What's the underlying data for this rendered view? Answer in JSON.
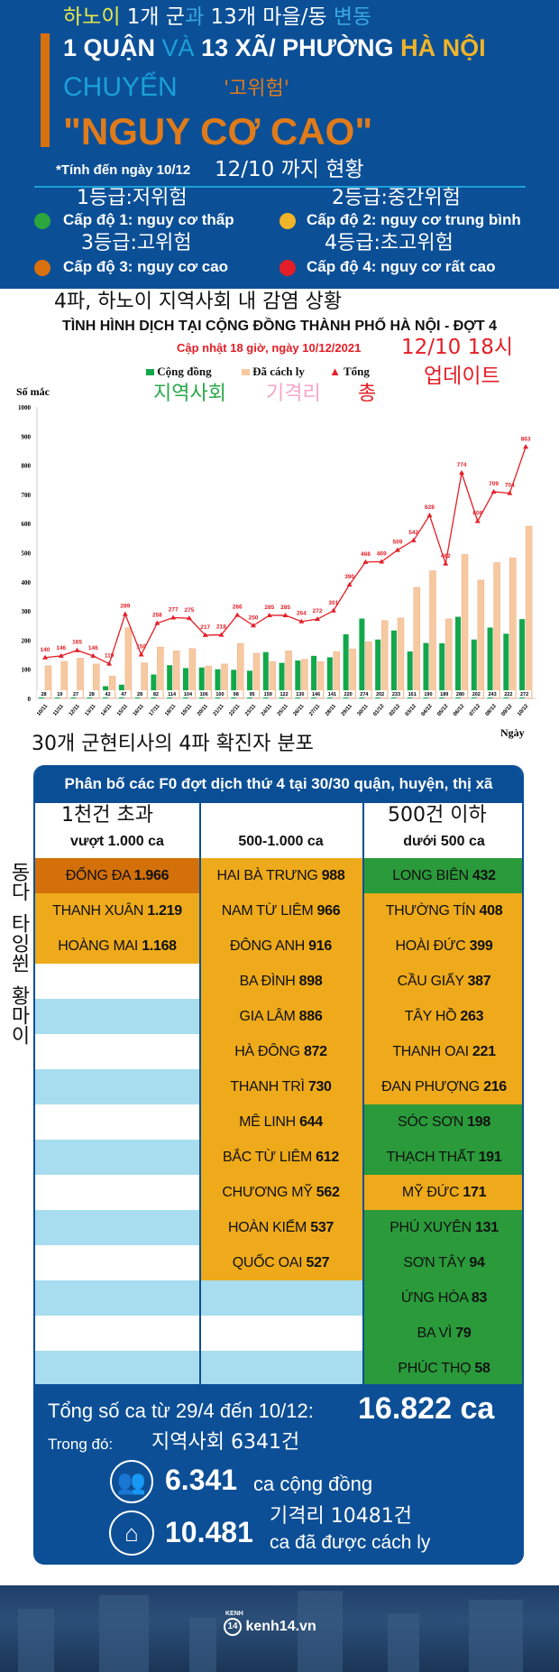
{
  "header": {
    "ko_line1": [
      "하노이",
      "1개 군",
      "과",
      "13개 마을/동",
      "변동"
    ],
    "title_line1": [
      "1 QUẬN",
      "VÀ",
      "13 XÃ/ PHƯỜNG",
      "HÀ NỘI"
    ],
    "title_line2": "CHUYỂN",
    "ko_high_risk": "'고위험'",
    "title_line3": "\"NGUY CƠ CAO\"",
    "asof": "*Tính đến ngày 10/12",
    "ko_asof": "12/10 까지 현황",
    "levels": [
      {
        "ko": "1등급:저위험",
        "label": "Cấp độ 1: nguy cơ thấp",
        "color": "#2ba63c"
      },
      {
        "ko": "2등급:중간위험",
        "label": "Cấp độ 2: nguy cơ trung bình",
        "color": "#f0b428"
      },
      {
        "ko": "3등급:고위험",
        "label": "Cấp độ 3: nguy cơ cao",
        "color": "#d8700e"
      },
      {
        "ko": "4등급:초고위험",
        "label": "Cấp độ 4: nguy cơ rất cao",
        "color": "#e41e26"
      }
    ]
  },
  "chart_section": {
    "ko_title": "4파, 하노이 지역사회 내 감염 상황",
    "ko_updated_1": "12/10 18시",
    "ko_updated_2": "업데이트",
    "ko_legend": [
      "지역사회",
      "기격리",
      "총"
    ]
  },
  "chart_data": {
    "type": "bar",
    "title": "TÌNH HÌNH DỊCH TẠI CỘNG ĐỒNG THÀNH PHỐ HÀ NỘI - ĐỢT 4",
    "subtitle": "Cập nhật 18 giờ, ngày 10/12/2021",
    "ylabel": "Số mắc",
    "xlabel": "Ngày",
    "ylim": [
      0,
      1000
    ],
    "yticks": [
      "0",
      "100",
      "200",
      "300",
      "400",
      "500",
      "600",
      "700",
      "800",
      "900",
      "1000"
    ],
    "legend": [
      "Cộng đồng",
      "Đã cách ly",
      "Tổng"
    ],
    "colors": {
      "community": "#12a84a",
      "isolated": "#f7c9a0",
      "total": "#e41e26"
    },
    "categories": [
      "10/11",
      "11/11",
      "12/11",
      "13/11",
      "14/11",
      "15/11",
      "16/11",
      "17/11",
      "18/11",
      "19/11",
      "20/11",
      "21/11",
      "22/11",
      "23/11",
      "24/11",
      "25/11",
      "26/11",
      "27/11",
      "28/11",
      "29/11",
      "30/11",
      "01/12",
      "02/12",
      "03/12",
      "04/12",
      "05/12",
      "06/12",
      "07/12",
      "08/12",
      "09/12",
      "10/12"
    ],
    "series": [
      {
        "name": "Cộng đồng",
        "values": [
          28,
          19,
          27,
          28,
          42,
          47,
          28,
          82,
          114,
          104,
          106,
          100,
          98,
          95,
          159,
          122,
          130,
          146,
          141,
          220,
          274,
          202,
          233,
          161,
          190,
          189,
          280,
          202,
          243,
          222,
          272
        ]
      },
      {
        "name": "Tổng",
        "values": [
          140,
          146,
          165,
          146,
          119,
          289,
          150,
          258,
          277,
          275,
          217,
          218,
          286,
          250,
          285,
          285,
          264,
          272,
          301,
          390,
          468,
          469,
          509,
          542,
          628,
          462,
          774,
          608,
          709,
          704,
          863
        ]
      }
    ]
  },
  "table": {
    "ko_title": "30개 군현티사의 4파 확진자 분포",
    "title": "Phân bố các F0 đợt dịch thứ 4 tại 30/30 quận, huyện, thị xã",
    "ko_col1": "1천건 초과",
    "ko_col3": "500건 이하",
    "ko_side": [
      "동다",
      "타잉쒼",
      "황마이"
    ],
    "columns": [
      {
        "header": "vượt 1.000 ca",
        "rows": [
          [
            "ĐỐNG ĐA",
            "1.966",
            "o"
          ],
          [
            "THANH XUÂN",
            "1.219",
            "y"
          ],
          [
            "HOÀNG MAI",
            "1.168",
            "y"
          ]
        ]
      },
      {
        "header": "500-1.000 ca",
        "rows": [
          [
            "HAI BÀ TRƯNG",
            "988",
            "y"
          ],
          [
            "NAM TỪ LIÊM",
            "966",
            "y"
          ],
          [
            "ĐÔNG ANH",
            "916",
            "y"
          ],
          [
            "BA ĐÌNH",
            "898",
            "y"
          ],
          [
            "GIA LÂM",
            "886",
            "y"
          ],
          [
            "HÀ ĐÔNG",
            "872",
            "y"
          ],
          [
            "THANH TRÌ",
            "730",
            "y"
          ],
          [
            "MÊ LINH",
            "644",
            "y"
          ],
          [
            "BẮC TỪ LIÊM",
            "612",
            "y"
          ],
          [
            "CHƯƠNG MỸ",
            "562",
            "y"
          ],
          [
            "HOÀN KIẾM",
            "537",
            "y"
          ],
          [
            "QUỐC OAI",
            "527",
            "y"
          ]
        ]
      },
      {
        "header": "dưới 500 ca",
        "rows": [
          [
            "LONG BIÊN",
            "432",
            "g"
          ],
          [
            "THƯỜNG TÍN",
            "408",
            "y"
          ],
          [
            "HOÀI ĐỨC",
            "399",
            "y"
          ],
          [
            "CẦU GIẤY",
            "387",
            "y"
          ],
          [
            "TÂY HỒ",
            "263",
            "y"
          ],
          [
            "THANH OAI",
            "221",
            "y"
          ],
          [
            "ĐAN PHƯỢNG",
            "216",
            "y"
          ],
          [
            "SÓC SƠN",
            "198",
            "g"
          ],
          [
            "THẠCH THẤT",
            "191",
            "g"
          ],
          [
            "MỸ ĐỨC",
            "171",
            "y"
          ],
          [
            "PHÚ XUYÊN",
            "131",
            "g"
          ],
          [
            "SƠN TÂY",
            "94",
            "g"
          ],
          [
            "ỨNG HÒA",
            "83",
            "g"
          ],
          [
            "BA VÌ",
            "79",
            "g"
          ],
          [
            "PHÚC THỌ",
            "58",
            "g"
          ]
        ]
      }
    ]
  },
  "summary": {
    "total_label": "Tổng số ca từ 29/4 đến 10/12:",
    "total_value": "16.822 ca",
    "in_which": "Trong đó:",
    "ko_community": "지역사회 6341건",
    "community_value": "6.341",
    "community_label": "ca cộng đồng",
    "ko_isolated": "기격리 10481건",
    "isolated_value": "10.481",
    "isolated_label": "ca đã được cách ly"
  },
  "footer": {
    "logo_small": "KENH",
    "logo": "kenh14.vn",
    "logo_num": "14"
  }
}
